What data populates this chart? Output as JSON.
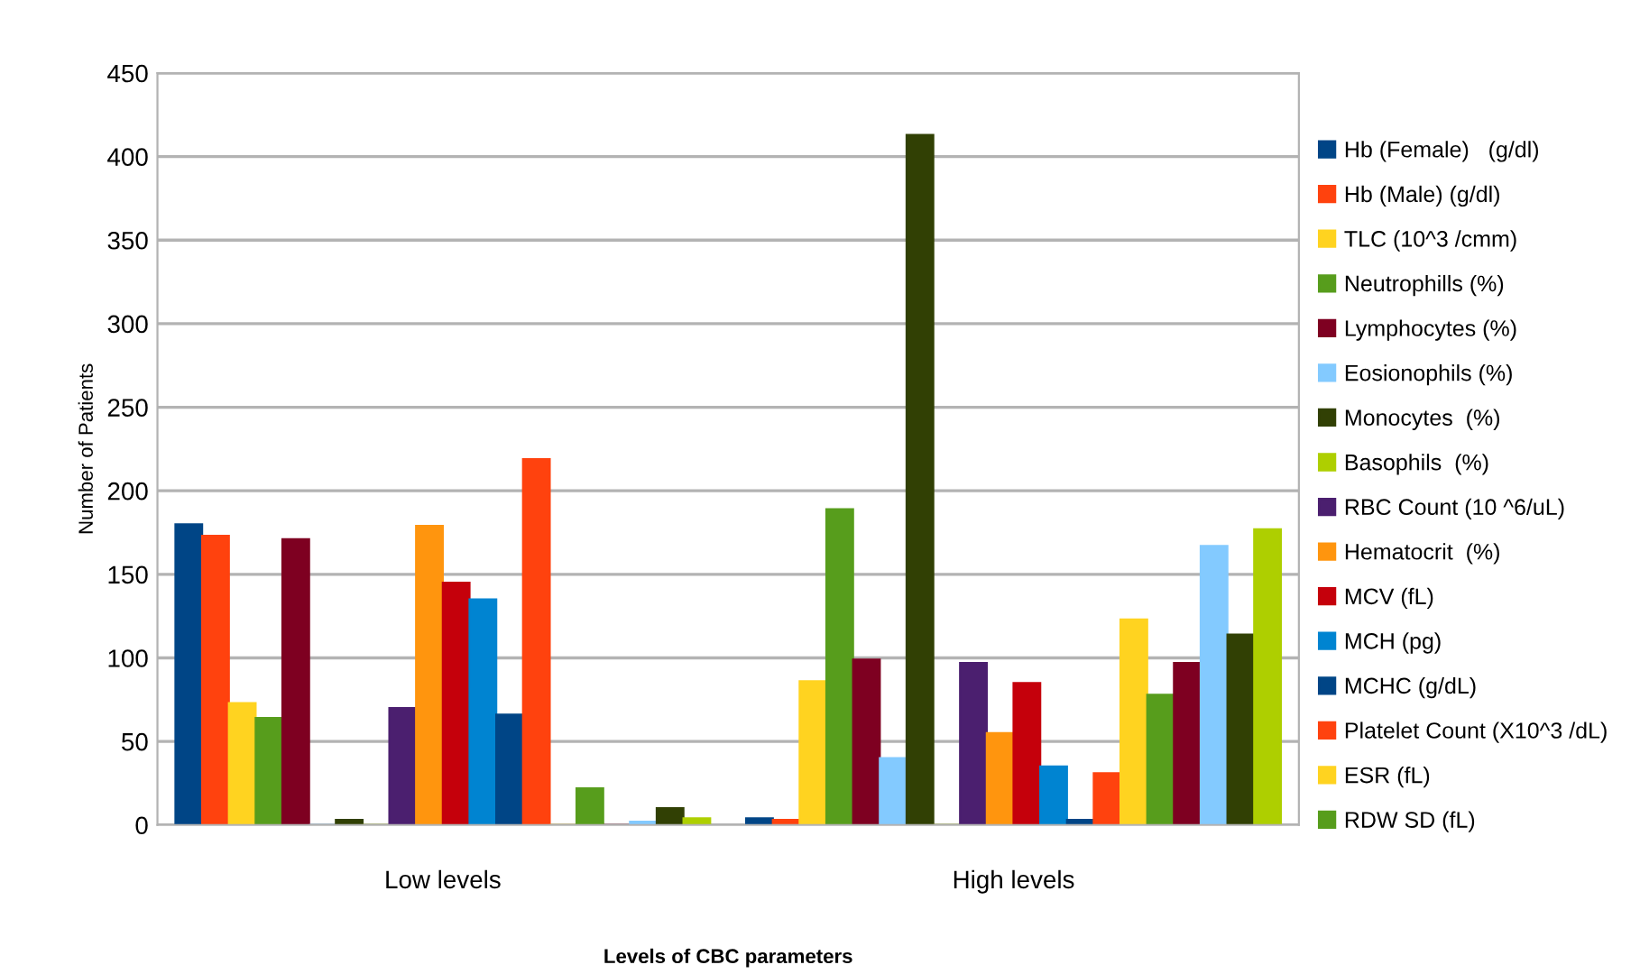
{
  "chart_data": {
    "type": "bar",
    "xlabel": "Levels of CBC parameters",
    "ylabel": "Number of Patients",
    "categories": [
      "Low levels",
      "High levels"
    ],
    "series": [
      {
        "name": "Hb (Female)   (g/dl)",
        "color": "#004586",
        "values": [
          180,
          4
        ]
      },
      {
        "name": "Hb (Male) (g/dl)",
        "color": "#ff420e",
        "values": [
          173,
          3
        ]
      },
      {
        "name": "TLC (10^3 /cmm)",
        "color": "#ffd320",
        "values": [
          73,
          86
        ]
      },
      {
        "name": "Neutrophills (%)",
        "color": "#579d1c",
        "values": [
          64,
          189
        ]
      },
      {
        "name": "Lymphocytes (%)",
        "color": "#7e0021",
        "values": [
          171,
          99
        ]
      },
      {
        "name": "Eosionophils (%)",
        "color": "#83caff",
        "values": [
          0,
          40
        ]
      },
      {
        "name": "Monocytes  (%)",
        "color": "#314004",
        "values": [
          3,
          413
        ]
      },
      {
        "name": "Basophils  (%)",
        "color": "#aecf00",
        "values": [
          0,
          0
        ]
      },
      {
        "name": "RBC Count (10 ^6/uL)",
        "color": "#4b1f6f",
        "values": [
          70,
          97
        ]
      },
      {
        "name": "Hematocrit  (%)",
        "color": "#ff950e",
        "values": [
          179,
          55
        ]
      },
      {
        "name": "MCV (fL)",
        "color": "#c5000b",
        "values": [
          145,
          85
        ]
      },
      {
        "name": "MCH (pg)",
        "color": "#0084d1",
        "values": [
          135,
          35
        ]
      },
      {
        "name": "MCHC (g/dL)",
        "color": "#004586",
        "values": [
          66,
          3
        ]
      },
      {
        "name": "Platelet Count (X10^3 /dL)",
        "color": "#ff420e",
        "values": [
          219,
          31
        ]
      },
      {
        "name": "ESR (fL)",
        "color": "#ffd320",
        "values": [
          0,
          123
        ]
      },
      {
        "name": "RDW SD (fL)",
        "color": "#579d1c",
        "values": [
          22,
          78
        ]
      },
      {
        "color": "#7e0021",
        "values": [
          0,
          97
        ]
      },
      {
        "color": "#83caff",
        "values": [
          2,
          167
        ]
      },
      {
        "color": "#314004",
        "values": [
          10,
          114
        ]
      },
      {
        "color": "#aecf00",
        "values": [
          4,
          177
        ]
      }
    ],
    "ylim": [
      0,
      450
    ],
    "yticks": [
      0,
      50,
      100,
      150,
      200,
      250,
      300,
      350,
      400,
      450
    ],
    "grid": "y",
    "legend": "right"
  }
}
